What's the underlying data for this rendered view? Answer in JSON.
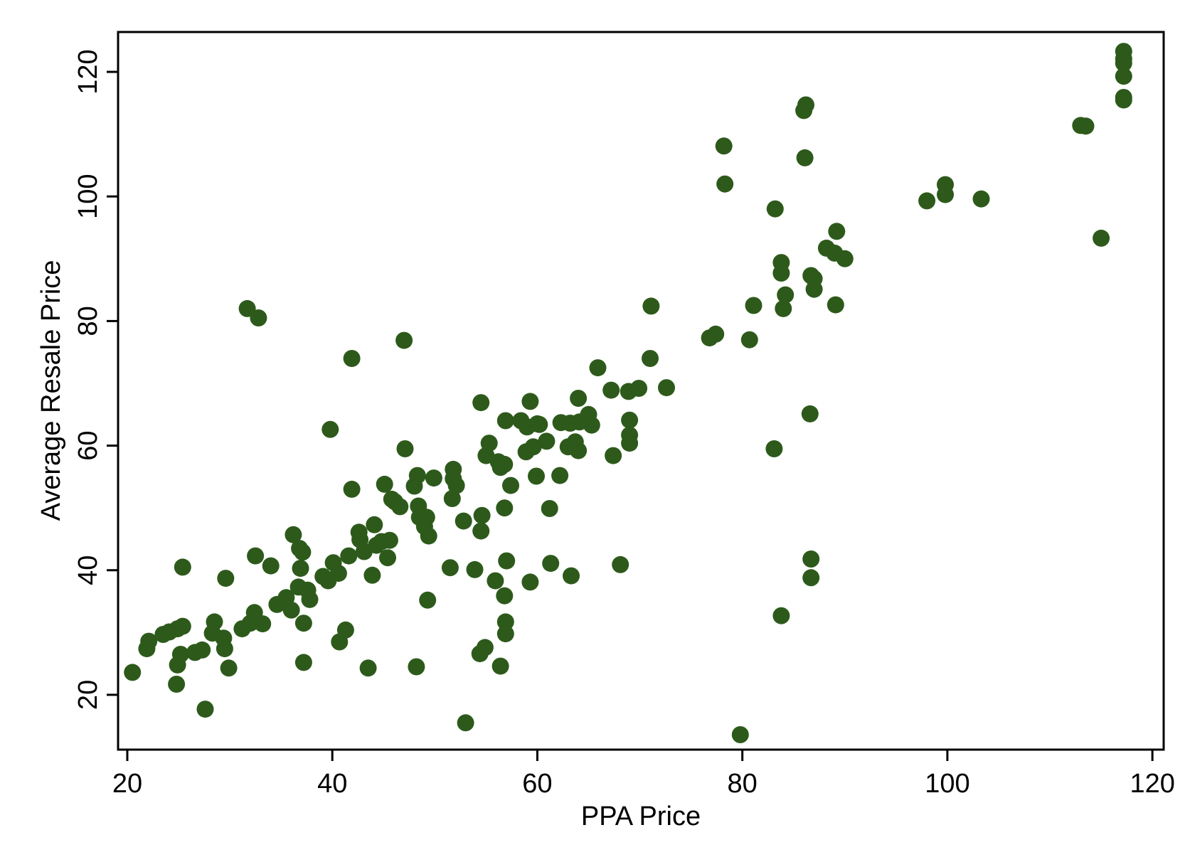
{
  "chart_data": {
    "type": "scatter",
    "title": "",
    "xlabel": "PPA Price",
    "ylabel": "Average Resale Price",
    "xlim": [
      19.1,
      121.1
    ],
    "ylim": [
      11.2,
      126.4
    ],
    "xticks": [
      20,
      40,
      60,
      80,
      100,
      120
    ],
    "yticks": [
      20,
      40,
      60,
      80,
      100,
      120
    ],
    "grid": false,
    "marker_color": "#2d5a1b",
    "series": [
      {
        "points": [
          [
            20.5,
            23.6
          ],
          [
            21.9,
            27.4
          ],
          [
            22.1,
            28.6
          ],
          [
            23.5,
            29.7
          ],
          [
            24.1,
            30.1
          ],
          [
            24.9,
            30.6
          ],
          [
            25.4,
            31.0
          ],
          [
            24.8,
            21.7
          ],
          [
            24.9,
            24.8
          ],
          [
            25.2,
            26.5
          ],
          [
            25.4,
            40.5
          ],
          [
            26.6,
            26.8
          ],
          [
            27.3,
            27.2
          ],
          [
            27.6,
            17.7
          ],
          [
            28.3,
            29.9
          ],
          [
            28.5,
            31.7
          ],
          [
            29.4,
            29.1
          ],
          [
            29.5,
            27.4
          ],
          [
            29.6,
            38.7
          ],
          [
            29.9,
            24.3
          ],
          [
            31.2,
            30.6
          ],
          [
            31.7,
            82.0
          ],
          [
            32.0,
            31.5
          ],
          [
            32.4,
            33.2
          ],
          [
            32.5,
            42.3
          ],
          [
            32.8,
            80.5
          ],
          [
            33.2,
            31.4
          ],
          [
            34.0,
            40.7
          ],
          [
            34.6,
            34.5
          ],
          [
            35.5,
            35.6
          ],
          [
            36.0,
            33.6
          ],
          [
            36.2,
            45.7
          ],
          [
            36.7,
            37.3
          ],
          [
            36.8,
            43.5
          ],
          [
            36.9,
            40.3
          ],
          [
            37.1,
            42.9
          ],
          [
            37.2,
            31.5
          ],
          [
            37.2,
            25.2
          ],
          [
            37.6,
            36.8
          ],
          [
            37.8,
            35.3
          ],
          [
            39.1,
            39.0
          ],
          [
            39.6,
            38.3
          ],
          [
            39.8,
            62.6
          ],
          [
            40.1,
            41.2
          ],
          [
            40.6,
            39.5
          ],
          [
            40.7,
            28.5
          ],
          [
            41.3,
            30.4
          ],
          [
            41.6,
            42.3
          ],
          [
            41.9,
            74.0
          ],
          [
            41.9,
            53.0
          ],
          [
            42.6,
            46.1
          ],
          [
            42.7,
            44.9
          ],
          [
            43.1,
            43.0
          ],
          [
            43.5,
            24.3
          ],
          [
            43.9,
            39.2
          ],
          [
            44.1,
            47.3
          ],
          [
            44.3,
            44.0
          ],
          [
            44.8,
            44.6
          ],
          [
            45.1,
            53.8
          ],
          [
            45.4,
            42.0
          ],
          [
            45.6,
            44.8
          ],
          [
            45.8,
            51.4
          ],
          [
            46.1,
            51.0
          ],
          [
            46.6,
            50.2
          ],
          [
            47.0,
            76.9
          ],
          [
            47.1,
            59.5
          ],
          [
            48.0,
            53.5
          ],
          [
            48.2,
            24.5
          ],
          [
            48.3,
            55.2
          ],
          [
            48.4,
            50.3
          ],
          [
            48.5,
            48.5
          ],
          [
            49.0,
            47.0
          ],
          [
            49.2,
            48.5
          ],
          [
            49.3,
            35.2
          ],
          [
            49.4,
            45.5
          ],
          [
            49.9,
            54.8
          ],
          [
            51.5,
            40.4
          ],
          [
            51.7,
            51.5
          ],
          [
            51.8,
            54.7
          ],
          [
            51.8,
            56.2
          ],
          [
            52.1,
            53.6
          ],
          [
            52.8,
            47.9
          ],
          [
            53.0,
            15.5
          ],
          [
            53.9,
            40.1
          ],
          [
            54.4,
            26.6
          ],
          [
            54.5,
            66.9
          ],
          [
            54.5,
            46.3
          ],
          [
            54.6,
            48.8
          ],
          [
            54.9,
            27.6
          ],
          [
            55.0,
            58.4
          ],
          [
            55.3,
            60.4
          ],
          [
            55.9,
            38.3
          ],
          [
            56.2,
            57.4
          ],
          [
            56.4,
            56.5
          ],
          [
            56.4,
            24.6
          ],
          [
            56.8,
            57.0
          ],
          [
            56.8,
            50.0
          ],
          [
            56.8,
            35.9
          ],
          [
            56.9,
            31.7
          ],
          [
            56.9,
            29.8
          ],
          [
            56.9,
            64.0
          ],
          [
            57.0,
            41.5
          ],
          [
            57.4,
            53.6
          ],
          [
            58.4,
            64.0
          ],
          [
            58.9,
            59.0
          ],
          [
            59.0,
            63.0
          ],
          [
            59.3,
            67.1
          ],
          [
            59.3,
            38.1
          ],
          [
            59.6,
            59.8
          ],
          [
            59.9,
            55.1
          ],
          [
            60.0,
            63.5
          ],
          [
            60.2,
            63.4
          ],
          [
            60.9,
            60.7
          ],
          [
            61.2,
            49.9
          ],
          [
            61.3,
            41.1
          ],
          [
            62.2,
            55.2
          ],
          [
            62.3,
            63.7
          ],
          [
            63.0,
            59.8
          ],
          [
            63.2,
            63.6
          ],
          [
            63.3,
            39.1
          ],
          [
            63.7,
            60.6
          ],
          [
            64.0,
            67.6
          ],
          [
            64.0,
            59.2
          ],
          [
            64.1,
            63.8
          ],
          [
            65.0,
            65.0
          ],
          [
            65.3,
            63.3
          ],
          [
            65.9,
            72.5
          ],
          [
            67.2,
            68.9
          ],
          [
            67.4,
            58.4
          ],
          [
            68.1,
            40.9
          ],
          [
            68.9,
            68.7
          ],
          [
            69.0,
            64.1
          ],
          [
            69.0,
            61.7
          ],
          [
            69.0,
            60.4
          ],
          [
            69.9,
            69.2
          ],
          [
            71.0,
            74.0
          ],
          [
            71.1,
            82.4
          ],
          [
            72.6,
            69.3
          ],
          [
            76.8,
            77.3
          ],
          [
            77.4,
            77.9
          ],
          [
            78.2,
            108.1
          ],
          [
            78.3,
            102.0
          ],
          [
            79.8,
            13.6
          ],
          [
            80.7,
            77.0
          ],
          [
            81.1,
            82.5
          ],
          [
            83.1,
            59.5
          ],
          [
            83.2,
            98.0
          ],
          [
            83.8,
            89.4
          ],
          [
            83.8,
            87.7
          ],
          [
            83.8,
            32.7
          ],
          [
            84.0,
            82.0
          ],
          [
            84.2,
            84.2
          ],
          [
            86.0,
            113.8
          ],
          [
            86.1,
            106.2
          ],
          [
            86.2,
            114.7
          ],
          [
            86.6,
            65.1
          ],
          [
            86.7,
            87.3
          ],
          [
            86.7,
            41.8
          ],
          [
            86.7,
            38.8
          ],
          [
            87.0,
            86.8
          ],
          [
            87.0,
            85.1
          ],
          [
            88.2,
            91.7
          ],
          [
            89.0,
            90.9
          ],
          [
            89.1,
            82.6
          ],
          [
            89.2,
            94.4
          ],
          [
            90.0,
            90.0
          ],
          [
            98.0,
            99.3
          ],
          [
            99.8,
            101.9
          ],
          [
            99.8,
            100.3
          ],
          [
            103.3,
            99.6
          ],
          [
            113.0,
            111.4
          ],
          [
            113.5,
            111.3
          ],
          [
            115.0,
            93.3
          ],
          [
            117.2,
            123.3
          ],
          [
            117.2,
            122.1
          ],
          [
            117.2,
            121.4
          ],
          [
            117.2,
            119.3
          ],
          [
            117.2,
            115.9
          ],
          [
            117.2,
            115.5
          ]
        ]
      }
    ]
  }
}
